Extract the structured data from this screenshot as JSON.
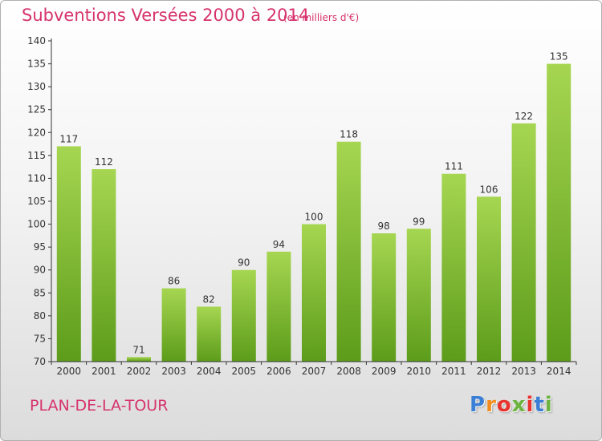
{
  "header": {
    "title": "Subventions Versées 2000 à 2014",
    "subtitle": "(en milliers d'€)"
  },
  "footer": {
    "commune": "PLAN-DE-LA-TOUR",
    "logo_text": "Proxiti",
    "logo_colors": [
      "#3a7fd5",
      "#f28c1e",
      "#e9322d",
      "#6cb33f",
      "#e9322d",
      "#3a7fd5",
      "#6cb33f"
    ]
  },
  "colors": {
    "title": "#d6336c",
    "bar_top": "#a6d651",
    "bar_bottom": "#5c9c1a",
    "axis": "#333333"
  },
  "chart_data": {
    "type": "bar",
    "title": "Subventions Versées 2000 à 2014",
    "subtitle": "(en milliers d'€)",
    "categories": [
      "2000",
      "2001",
      "2002",
      "2003",
      "2004",
      "2005",
      "2006",
      "2007",
      "2008",
      "2009",
      "2010",
      "2011",
      "2012",
      "2013",
      "2014"
    ],
    "values": [
      117,
      112,
      71,
      86,
      82,
      90,
      94,
      100,
      118,
      98,
      99,
      111,
      106,
      122,
      135
    ],
    "ylim": [
      70,
      140
    ],
    "yticks": [
      70,
      75,
      80,
      85,
      90,
      95,
      100,
      105,
      110,
      115,
      120,
      125,
      130,
      135,
      140
    ],
    "xlabel": "",
    "ylabel": "",
    "grid": false,
    "data_labels": true
  }
}
